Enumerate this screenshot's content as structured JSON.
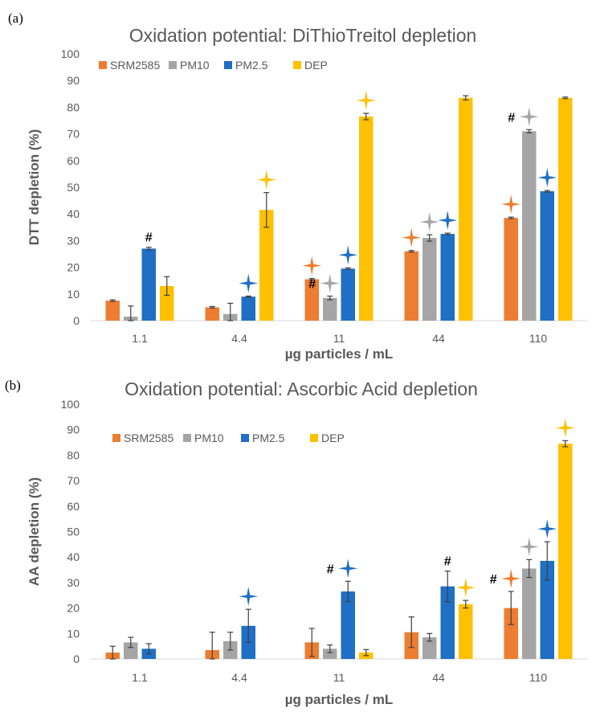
{
  "chart_data": [
    {
      "panel": "(a)",
      "type": "bar",
      "title": "Oxidation potential: DiThioTreitol depletion",
      "xlabel": "µg particles / mL",
      "ylabel": "DTT depletion  (%)",
      "ylim": [
        0,
        100
      ],
      "yticks": [
        0,
        10,
        20,
        30,
        40,
        50,
        60,
        70,
        80,
        90,
        100
      ],
      "categories": [
        "1.1",
        "4.4",
        "11",
        "44",
        "110"
      ],
      "legend_position": "top-left",
      "series": [
        {
          "name": "SRM2585",
          "color": "#ED7D31",
          "values": [
            7.5,
            5,
            15.5,
            26,
            38.5
          ],
          "errors": [
            0.3,
            0.3,
            0.3,
            0.3,
            0.3
          ],
          "stars": [
            false,
            false,
            true,
            true,
            true
          ],
          "hash": [
            false,
            false,
            false,
            false,
            false
          ]
        },
        {
          "name": "PM10",
          "color": "#A5A5A5",
          "values": [
            1.5,
            2.5,
            8.5,
            31,
            71
          ],
          "errors": [
            4,
            4,
            0.7,
            1.2,
            0.6
          ],
          "stars": [
            false,
            false,
            true,
            true,
            true
          ],
          "hash": [
            false,
            false,
            true,
            false,
            true
          ]
        },
        {
          "name": "PM2.5",
          "color": "#1F6FC4",
          "values": [
            27,
            9,
            19.5,
            32.5,
            48.5
          ],
          "errors": [
            0.5,
            0.2,
            0.3,
            0.3,
            0.3
          ],
          "stars": [
            false,
            true,
            true,
            true,
            true
          ],
          "hash": [
            true,
            false,
            false,
            false,
            false
          ]
        },
        {
          "name": "DEP",
          "color": "#FFC000",
          "values": [
            13,
            41.5,
            76.5,
            83.5,
            83.5
          ],
          "errors": [
            3.5,
            6.5,
            1.2,
            0.8,
            0.3
          ],
          "stars": [
            false,
            true,
            true,
            false,
            false
          ],
          "hash": [
            false,
            false,
            false,
            false,
            false
          ]
        }
      ]
    },
    {
      "panel": "(b)",
      "type": "bar",
      "title": "Oxidation potential: Ascorbic Acid depletion",
      "xlabel": "µg particles / mL",
      "ylabel": "AA depletion  (%)",
      "ylim": [
        0,
        100
      ],
      "yticks": [
        0,
        10,
        20,
        30,
        40,
        50,
        60,
        70,
        80,
        90,
        100
      ],
      "categories": [
        "1.1",
        "4.4",
        "11",
        "44",
        "110"
      ],
      "legend_position": "top-left",
      "series": [
        {
          "name": "SRM2585",
          "color": "#ED7D31",
          "values": [
            2.5,
            3.5,
            6.5,
            10.5,
            20
          ],
          "errors": [
            2.5,
            7,
            5.5,
            6,
            6.5
          ],
          "stars": [
            false,
            false,
            false,
            false,
            true
          ],
          "hash": [
            false,
            false,
            false,
            false,
            true
          ]
        },
        {
          "name": "PM10",
          "color": "#A5A5A5",
          "values": [
            6.5,
            7,
            4,
            8.5,
            35.5
          ],
          "errors": [
            2,
            3.5,
            1.5,
            1.5,
            3.5
          ],
          "stars": [
            false,
            false,
            false,
            false,
            true
          ],
          "hash": [
            false,
            false,
            false,
            false,
            false
          ]
        },
        {
          "name": "PM2.5",
          "color": "#1F6FC4",
          "values": [
            4,
            13,
            26.5,
            28.5,
            38.5
          ],
          "errors": [
            2,
            6.5,
            4,
            6,
            7.5
          ],
          "stars": [
            false,
            true,
            true,
            false,
            true
          ],
          "hash": [
            false,
            false,
            true,
            true,
            false
          ]
        },
        {
          "name": "DEP",
          "color": "#FFC000",
          "values": [
            0,
            0,
            2.5,
            21.5,
            84.5
          ],
          "errors": [
            0,
            0,
            1.2,
            1.5,
            1.2
          ],
          "stars": [
            false,
            false,
            false,
            true,
            true
          ],
          "hash": [
            false,
            false,
            false,
            false,
            false
          ]
        }
      ]
    }
  ]
}
